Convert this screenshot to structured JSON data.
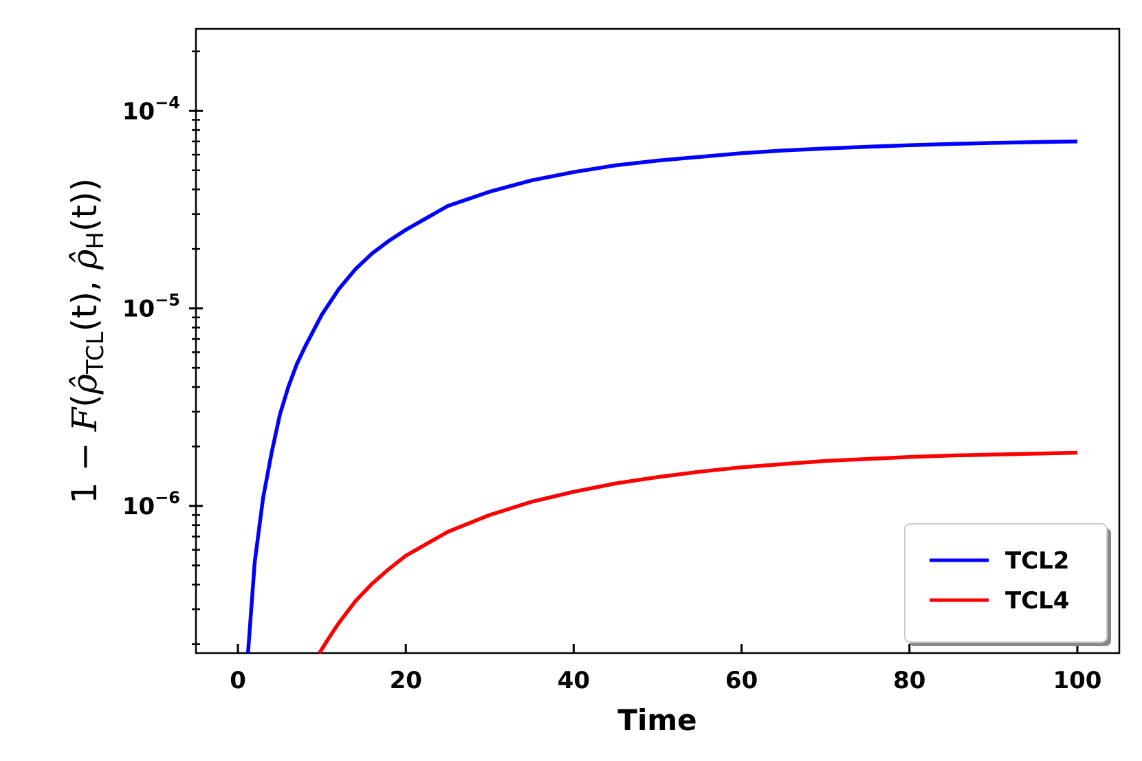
{
  "chart_data": {
    "type": "line",
    "title": "",
    "xlabel": "Time",
    "ylabel": {
      "lead": "1 − ",
      "func": "F",
      "open": "(",
      "rho": "ρ̂",
      "sub1": "TCL",
      "arg1": "(t), ",
      "sub2": "H",
      "arg2": "(t))"
    },
    "x_scale": "linear",
    "y_scale": "log",
    "xlim": [
      -5,
      105
    ],
    "ylim": [
      1.8e-07,
      0.00026
    ],
    "x_ticks": [
      0,
      20,
      40,
      60,
      80,
      100
    ],
    "x_tick_labels": [
      "0",
      "20",
      "40",
      "60",
      "80",
      "100"
    ],
    "y_major_ticks": [
      {
        "value": 1e-06,
        "base": "10",
        "exp": "−6"
      },
      {
        "value": 1e-05,
        "base": "10",
        "exp": "−5"
      },
      {
        "value": 0.0001,
        "base": "10",
        "exp": "−4"
      }
    ],
    "grid": false,
    "legend_position": "lower-right",
    "series": [
      {
        "name": "TCL2",
        "color": "#0000ff",
        "x": [
          1.2,
          2,
          3,
          4,
          5,
          6,
          7,
          8,
          10,
          12,
          14,
          16,
          18,
          20,
          25,
          30,
          35,
          40,
          45,
          50,
          55,
          60,
          65,
          70,
          75,
          80,
          85,
          90,
          95,
          100
        ],
        "y": [
          1.8e-07,
          5.2e-07,
          1.1e-06,
          1.85e-06,
          2.9e-06,
          4e-06,
          5.2e-06,
          6.4e-06,
          9.3e-06,
          1.25e-05,
          1.58e-05,
          1.9e-05,
          2.2e-05,
          2.5e-05,
          3.3e-05,
          3.9e-05,
          4.45e-05,
          4.9e-05,
          5.3e-05,
          5.6e-05,
          5.85e-05,
          6.1e-05,
          6.3e-05,
          6.45e-05,
          6.58e-05,
          6.7e-05,
          6.8e-05,
          6.88e-05,
          6.95e-05,
          7e-05
        ]
      },
      {
        "name": "TCL4",
        "color": "#ff0000",
        "x": [
          9.7,
          11,
          12,
          14,
          16,
          18,
          20,
          25,
          30,
          35,
          40,
          45,
          50,
          55,
          60,
          65,
          70,
          75,
          80,
          85,
          90,
          95,
          100
        ],
        "y": [
          1.8e-07,
          2.2e-07,
          2.55e-07,
          3.3e-07,
          4.05e-07,
          4.8e-07,
          5.6e-07,
          7.4e-07,
          9e-07,
          1.05e-06,
          1.18e-06,
          1.3e-06,
          1.4e-06,
          1.49e-06,
          1.57e-06,
          1.63e-06,
          1.69e-06,
          1.73e-06,
          1.77e-06,
          1.8e-06,
          1.82e-06,
          1.84e-06,
          1.86e-06
        ]
      }
    ]
  }
}
